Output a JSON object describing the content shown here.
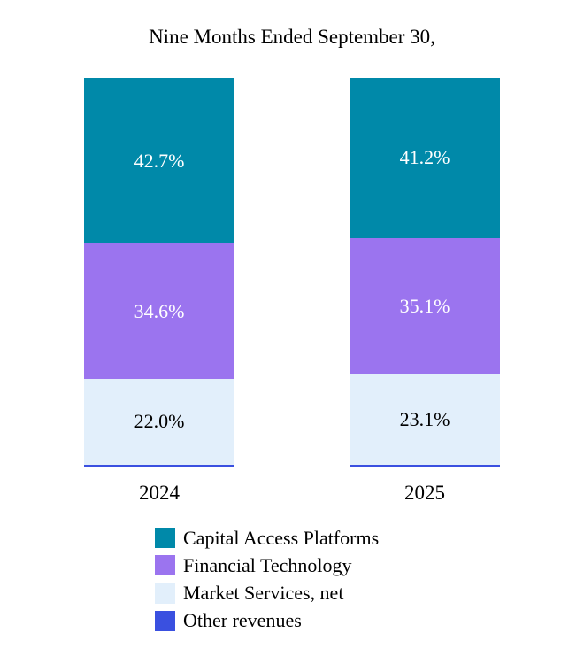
{
  "title": "Nine Months Ended September 30,",
  "chart_data": {
    "type": "bar",
    "stacked": true,
    "unit": "%",
    "categories": [
      "2024",
      "2025"
    ],
    "series": [
      {
        "name": "Capital Access Platforms",
        "color": "#0089A9",
        "text_color": "#FFFFFF",
        "values": [
          42.7,
          41.2
        ],
        "data_labels": [
          "42.7%",
          "41.2%"
        ]
      },
      {
        "name": "Financial Technology",
        "color": "#9B74EF",
        "text_color": "#FFFFFF",
        "values": [
          34.6,
          35.1
        ],
        "data_labels": [
          "34.6%",
          "35.1%"
        ]
      },
      {
        "name": "Market Services, net",
        "color": "#E2EFFB",
        "text_color": "#000000",
        "values": [
          22.0,
          23.1
        ],
        "data_labels": [
          "22.0%",
          "23.1%"
        ]
      },
      {
        "name": "Other revenues",
        "color": "#3A50E0",
        "text_color": "#FFFFFF",
        "values": [
          0.7,
          0.6
        ],
        "data_labels": [
          "",
          ""
        ]
      }
    ],
    "ylim": [
      0,
      100
    ],
    "grid": false,
    "legend_position": "bottom-left",
    "category_labels_position": "bottom"
  }
}
